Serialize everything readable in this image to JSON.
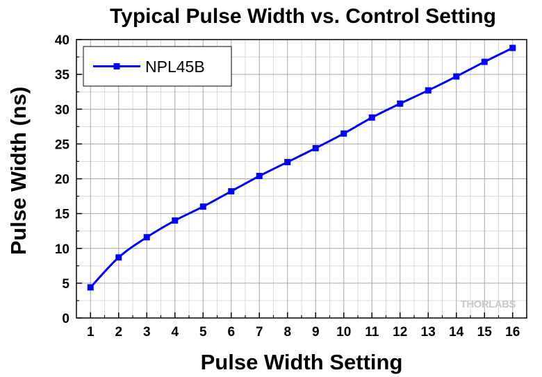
{
  "chart_data": {
    "type": "line",
    "title": "Typical Pulse Width vs. Control Setting",
    "xlabel": "Pulse Width Setting",
    "ylabel": "Pulse Width (ns)",
    "xlim": [
      0.5,
      16.5
    ],
    "ylim": [
      0,
      40
    ],
    "x_ticks": [
      1,
      2,
      3,
      4,
      5,
      6,
      7,
      8,
      9,
      10,
      11,
      12,
      13,
      14,
      15,
      16
    ],
    "y_ticks": [
      0,
      5,
      10,
      15,
      20,
      25,
      30,
      35,
      40
    ],
    "grid": true,
    "legend_position": "top-left",
    "series": [
      {
        "name": "NPL45B",
        "color": "#0000ff",
        "marker": "square",
        "x": [
          1,
          2,
          3,
          4,
          5,
          6,
          7,
          8,
          9,
          10,
          11,
          12,
          13,
          14,
          15,
          16
        ],
        "y": [
          4.4,
          8.7,
          11.6,
          14.0,
          16.0,
          18.2,
          20.4,
          22.4,
          24.4,
          26.5,
          28.8,
          30.8,
          32.7,
          34.7,
          36.8,
          38.8
        ]
      }
    ],
    "watermark": "THORLABS"
  }
}
